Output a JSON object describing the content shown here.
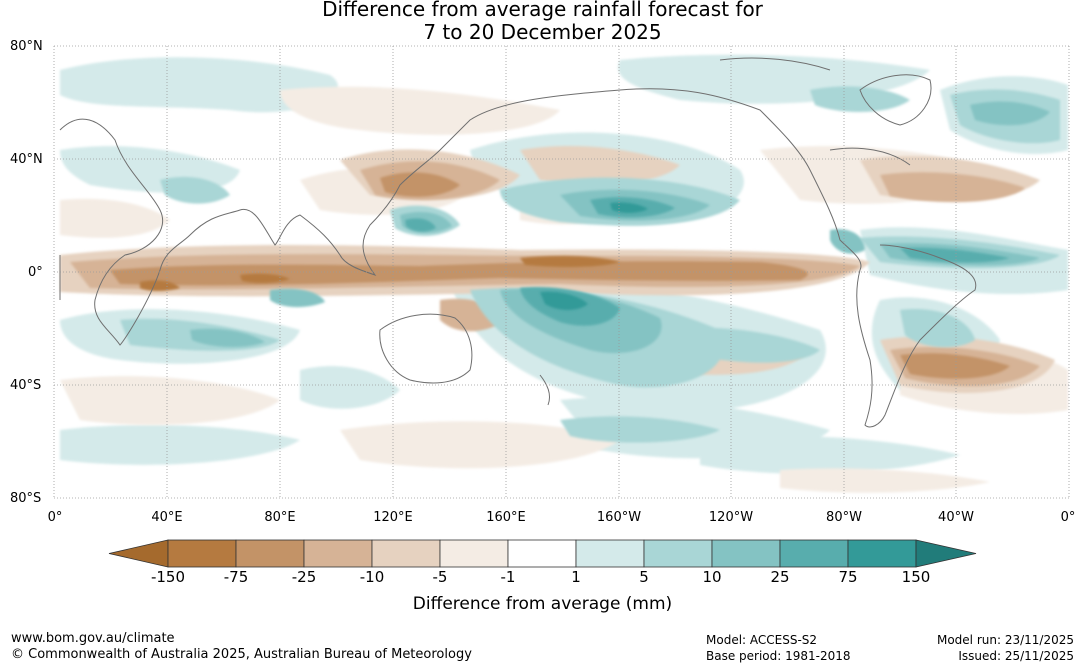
{
  "title": {
    "line1": "Difference from average rainfall forecast for",
    "line2": "7 to 20 December 2025"
  },
  "lat_labels": [
    "80°N",
    "40°N",
    "0°",
    "40°S",
    "80°S"
  ],
  "lon_labels": [
    "0°",
    "40°E",
    "80°E",
    "120°E",
    "160°E",
    "160°W",
    "120°W",
    "80°W",
    "40°W",
    "0°"
  ],
  "colorbar": {
    "ticks": [
      "-150",
      "-75",
      "-25",
      "-10",
      "-5",
      "-1",
      "1",
      "5",
      "10",
      "25",
      "75",
      "150"
    ],
    "colors": [
      "#a56a2d",
      "#b57a40",
      "#c39367",
      "#d6b396",
      "#e6d2c0",
      "#f4ece4",
      "#ffffff",
      "#d4eaea",
      "#a9d6d6",
      "#84c3c3",
      "#58adad",
      "#339a98",
      "#217c7a"
    ],
    "label": "Difference from average (mm)"
  },
  "footer": {
    "url": "www.bom.gov.au/climate",
    "copyright": "© Commonwealth of Australia 2025, Australian Bureau of Meteorology",
    "model": "Model: ACCESS-S2",
    "base_period": "Base period: 1981-2018",
    "model_run": "Model run: 23/11/2025",
    "issued": "Issued: 25/11/2025"
  }
}
